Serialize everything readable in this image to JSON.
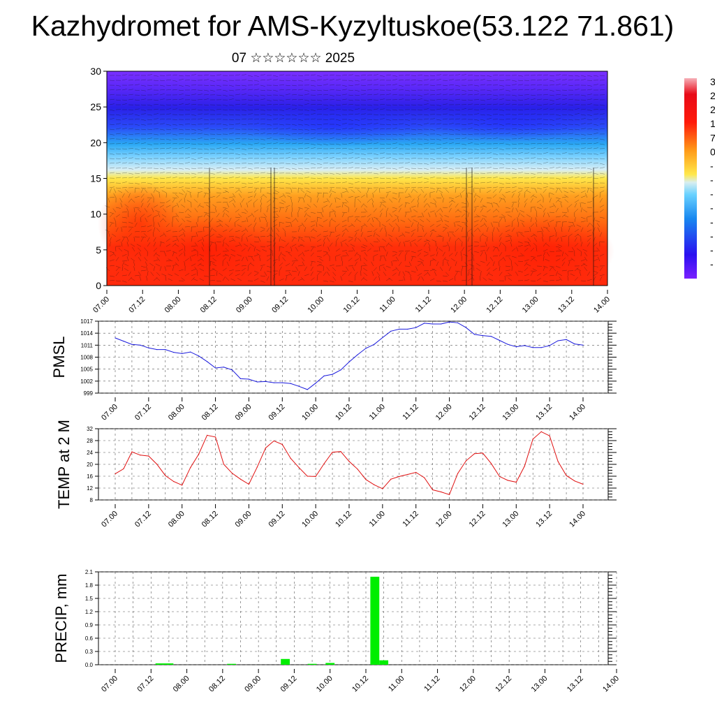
{
  "title": "Kazhydromet for AMS-Kyzyltuskoe(53.122 71.861)",
  "subtitle": "07 ☆☆☆☆☆☆ 2025",
  "time_ticks": [
    "07.00",
    "07.12",
    "08.00",
    "08.12",
    "09.00",
    "09.12",
    "10.00",
    "10.12",
    "11.00",
    "11.12",
    "12.00",
    "12.12",
    "13.00",
    "13.12",
    "14.00"
  ],
  "colorbar_labels": [
    "3",
    "2",
    "2",
    "1",
    "7",
    "0",
    "-",
    "-",
    "-",
    "-",
    "-",
    "-",
    "-",
    "-"
  ],
  "chart_data": [
    {
      "type": "heatmap",
      "title": "",
      "xlabel": "",
      "ylabel": "",
      "ylim": [
        0,
        30
      ],
      "yticks": [
        0,
        5,
        10,
        15,
        20,
        25,
        30
      ],
      "colors": {
        "low": "#6a1fff",
        "mid": "#ffe84a",
        "high": "#ff1a0a"
      }
    },
    {
      "type": "line",
      "name_label": "PMSL",
      "color": "#1a1adc",
      "ylim": [
        999,
        1017
      ],
      "yticks": [
        999,
        1002,
        1005,
        1008,
        1011,
        1014,
        1017
      ],
      "values": [
        1012.8,
        1012,
        1011.2,
        1011,
        1010.3,
        1009.9,
        1009.9,
        1009.2,
        1008.9,
        1009.3,
        1008.3,
        1006.9,
        1005.3,
        1005.5,
        1004.8,
        1002.6,
        1002.5,
        1001.8,
        1001.9,
        1001.6,
        1001.6,
        1001.4,
        1000.7,
        999.9,
        1001.5,
        1003.3,
        1003.7,
        1004.8,
        1006.8,
        1008.6,
        1010.2,
        1011.2,
        1012.9,
        1014.5,
        1015,
        1015,
        1015.4,
        1016.5,
        1016.3,
        1016.3,
        1016.8,
        1016.6,
        1015.4,
        1013.7,
        1013.4,
        1013.2,
        1012.2,
        1011.2,
        1010.6,
        1010.9,
        1010.4,
        1010.4,
        1010.9,
        1012.1,
        1012.4,
        1011.3,
        1011
      ]
    },
    {
      "type": "line",
      "name_label": "TEMP at 2 M",
      "color": "#e01010",
      "ylim": [
        8,
        32
      ],
      "yticks": [
        8,
        12,
        16,
        20,
        24,
        28,
        32
      ],
      "values": [
        16.8,
        18.5,
        24.2,
        23.1,
        22.8,
        20,
        16.2,
        14.2,
        13,
        18.9,
        23.4,
        29.8,
        29.2,
        20,
        17,
        15,
        13.3,
        19.1,
        25.5,
        27.9,
        26.7,
        22,
        18.9,
        16,
        15.9,
        20.2,
        24.1,
        24.3,
        21,
        18.4,
        14.9,
        13.1,
        11.8,
        15,
        15.9,
        16.6,
        17.3,
        15.5,
        11.4,
        10.7,
        9.8,
        16.9,
        21.2,
        23.6,
        23.8,
        20.3,
        15.9,
        14.6,
        14,
        19.4,
        28.5,
        31,
        29.6,
        21,
        16.2,
        14.4,
        13.3
      ]
    },
    {
      "type": "bar",
      "name_label": "PRECIP, mm",
      "color": "#00ee00",
      "ylim": [
        0,
        2.1
      ],
      "yticks": [
        "0.0",
        "0.3",
        "0.6",
        "0.9",
        "1.2",
        "1.5",
        "1.8",
        "2.1"
      ],
      "bars": [
        {
          "t": 5,
          "value": 0.03
        },
        {
          "t": 6,
          "value": 0.03
        },
        {
          "t": 13,
          "value": 0.02
        },
        {
          "t": 19,
          "value": 0.13
        },
        {
          "t": 22,
          "value": 0.02
        },
        {
          "t": 24,
          "value": 0.04
        },
        {
          "t": 29,
          "value": 1.99
        },
        {
          "t": 30,
          "value": 0.1
        }
      ]
    }
  ]
}
